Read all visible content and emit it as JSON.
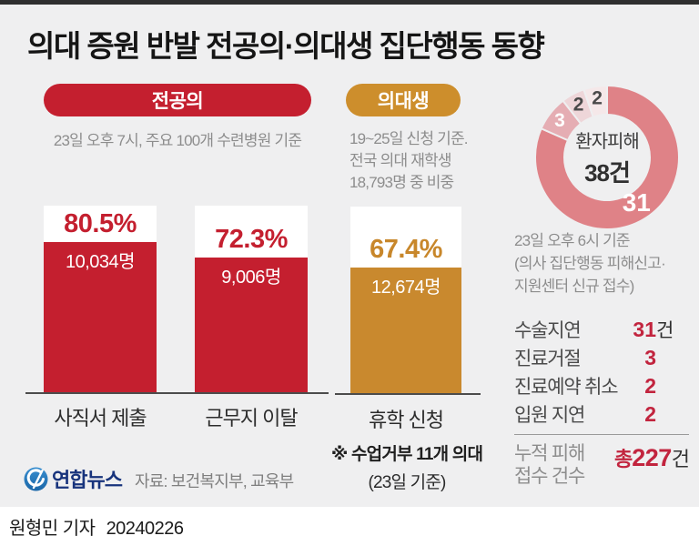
{
  "page": {
    "title": "의대 증원 반발 전공의·의대생 집단행동 동향",
    "footer_reporter": "원형민 기자",
    "footer_date": "20240226"
  },
  "residents": {
    "badge": "전공의",
    "subtitle": "23일 오후 7시, 주요 100개 수련병원 기준"
  },
  "students": {
    "badge": "의대생",
    "subtitle_lines": [
      "19~25일 신청 기준.",
      "전국 의대 재학생",
      "18,793명 중 비중"
    ],
    "footnote_line1": "※ 수업거부 11개 의대",
    "footnote_line2": "(23일 기준)"
  },
  "damage": {
    "caption_lines": [
      "23일 오후 6시 기준",
      "(의사 집단행동 피해신고·",
      "지원센터 신규 접수)"
    ],
    "rows": [
      {
        "label": "수술지연",
        "value": "31",
        "suffix": "건"
      },
      {
        "label": "진료거절",
        "value": "3",
        "suffix": ""
      },
      {
        "label": "진료예약 취소",
        "value": "2",
        "suffix": ""
      },
      {
        "label": "입원 지연",
        "value": "2",
        "suffix": ""
      }
    ],
    "total": {
      "label_line1": "누적 피해",
      "label_line2": "접수 건수",
      "prefix": "총",
      "value": "227",
      "suffix": "건"
    }
  },
  "source": {
    "brand": "연합뉴스",
    "text": "자료: 보건복지부, 교육부"
  },
  "colors": {
    "resident_red": "#c41f2f",
    "student_gold": "#c9892e",
    "stat_crimson": "#c2243e",
    "background": "#efeff0"
  },
  "chart_data": [
    {
      "type": "bar",
      "group": "전공의",
      "note": "23일 오후 7시, 주요 100개 수련병원 기준",
      "categories": [
        "사직서 제출",
        "근무지 이탈"
      ],
      "values": [
        80.5,
        72.3
      ],
      "value_labels": [
        "80.5%",
        "72.3%"
      ],
      "counts": [
        "10,034명",
        "9,006명"
      ],
      "unit": "%",
      "ylim": [
        0,
        100
      ],
      "bar_color": "#c41f2f"
    },
    {
      "type": "bar",
      "group": "의대생",
      "note": "19~25일 신청 기준. 전국 의대 재학생 18,793명 중 비중",
      "categories": [
        "휴학 신청"
      ],
      "values": [
        67.4
      ],
      "value_labels": [
        "67.4%"
      ],
      "counts": [
        "12,674명"
      ],
      "unit": "%",
      "ylim": [
        0,
        100
      ],
      "bar_color": "#c9892e"
    },
    {
      "type": "pie",
      "title": "환자피해 38건",
      "center_label": "환자피해",
      "center_value": "38건",
      "total": 38,
      "labels": [
        "수술지연",
        "진료거절",
        "진료예약 취소",
        "입원 지연"
      ],
      "values": [
        31,
        3,
        2,
        2
      ],
      "colors": [
        "#df8287",
        "#e5adb3",
        "#eed6d9",
        "#f5e8e9"
      ],
      "label_colors": [
        "#ffffff",
        "#ffffff",
        "#4a4a4a",
        "#4a4a4a"
      ]
    }
  ]
}
